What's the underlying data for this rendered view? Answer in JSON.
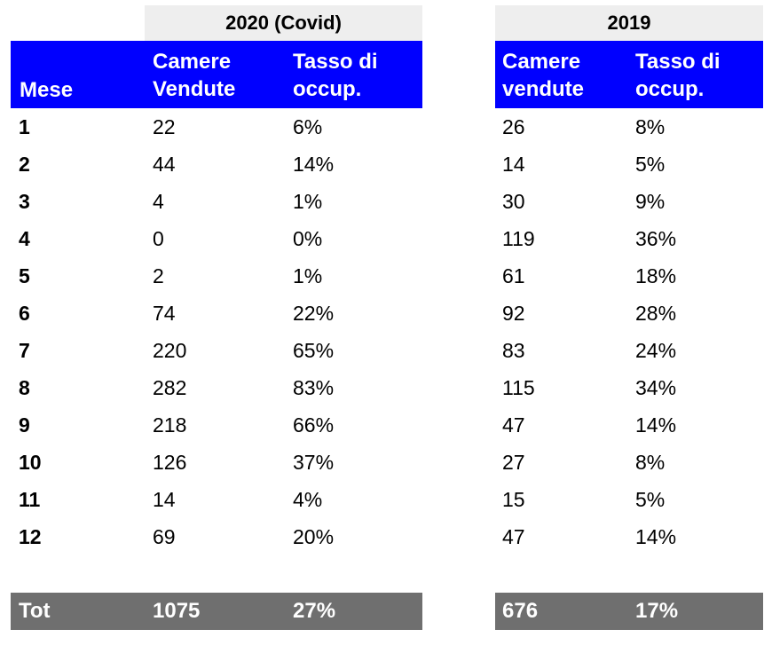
{
  "left_table": {
    "year_title": "2020 (Covid)",
    "col_month": "Mese",
    "col_rooms": [
      "Camere",
      "Vendute"
    ],
    "col_rate": [
      "Tasso di",
      "occup."
    ],
    "rows": [
      {
        "month": "1",
        "rooms": "22",
        "rate": "6%"
      },
      {
        "month": "2",
        "rooms": "44",
        "rate": "14%"
      },
      {
        "month": "3",
        "rooms": "4",
        "rate": "1%"
      },
      {
        "month": "4",
        "rooms": "0",
        "rate": "0%"
      },
      {
        "month": "5",
        "rooms": "2",
        "rate": "1%"
      },
      {
        "month": "6",
        "rooms": "74",
        "rate": "22%"
      },
      {
        "month": "7",
        "rooms": "220",
        "rate": "65%"
      },
      {
        "month": "8",
        "rooms": "282",
        "rate": "83%"
      },
      {
        "month": "9",
        "rooms": "218",
        "rate": "66%"
      },
      {
        "month": "10",
        "rooms": "126",
        "rate": "37%"
      },
      {
        "month": "11",
        "rooms": "14",
        "rate": "4%"
      },
      {
        "month": "12",
        "rooms": "69",
        "rate": "20%"
      }
    ],
    "total_label": "Tot",
    "total_rooms": "1075",
    "total_rate": "27%"
  },
  "right_table": {
    "year_title": "2019",
    "col_rooms": [
      "Camere",
      "vendute"
    ],
    "col_rate": [
      "Tasso di",
      "occup."
    ],
    "rows": [
      {
        "rooms": "26",
        "rate": "8%"
      },
      {
        "rooms": "14",
        "rate": "5%"
      },
      {
        "rooms": "30",
        "rate": "9%"
      },
      {
        "rooms": "119",
        "rate": "36%"
      },
      {
        "rooms": "61",
        "rate": "18%"
      },
      {
        "rooms": "92",
        "rate": "28%"
      },
      {
        "rooms": "83",
        "rate": "24%"
      },
      {
        "rooms": "115",
        "rate": "34%"
      },
      {
        "rooms": "47",
        "rate": "14%"
      },
      {
        "rooms": "27",
        "rate": "8%"
      },
      {
        "rooms": "15",
        "rate": "5%"
      },
      {
        "rooms": "47",
        "rate": "14%"
      }
    ],
    "total_rooms": "676",
    "total_rate": "17%"
  },
  "colors": {
    "header_blue": "#0000ff",
    "year_gray": "#eeeeee",
    "total_gray": "#6f6f6f"
  }
}
